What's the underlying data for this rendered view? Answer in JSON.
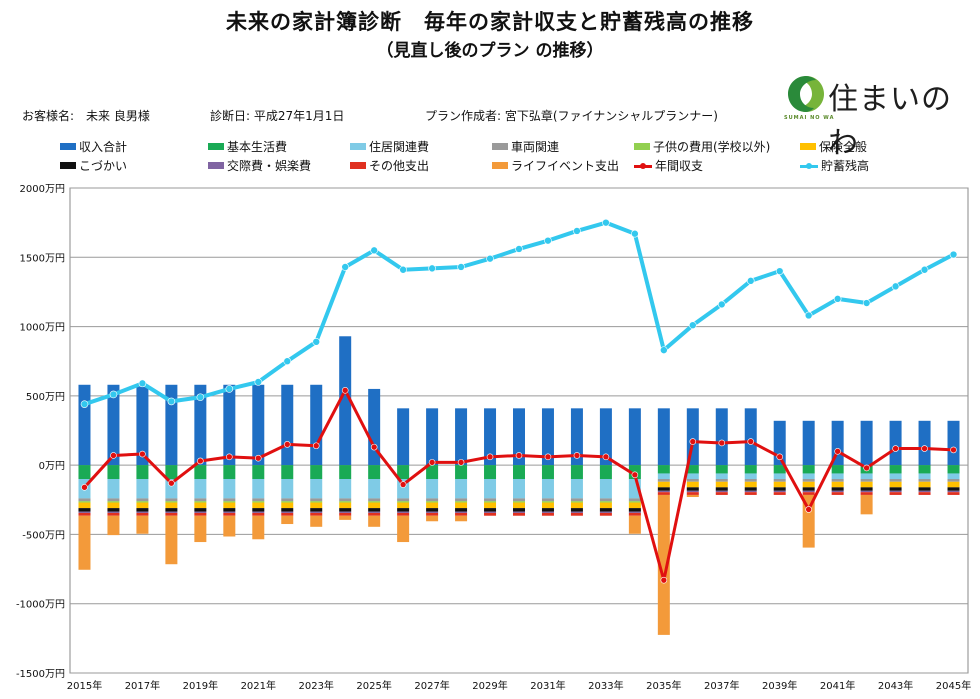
{
  "header": {
    "title": "未来の家計簿診断　毎年の家計収支と貯蓄残高の推移",
    "subtitle": "（見直し後のプラン の推移）"
  },
  "info": {
    "customer": "お客様名:　未来 良男様",
    "diag_date": "診断日: 平成27年1月1日",
    "planner": "プラン作成者: 宮下弘章(ファイナンシャルプランナー)"
  },
  "logo": {
    "text": "住まいのわ",
    "sub": "SUMAI NO WA"
  },
  "chart_data": {
    "type": "bar",
    "ylim": [
      -1500,
      2000
    ],
    "yticks": [
      "2000万円",
      "1500万円",
      "1000万円",
      "500万円",
      "0万円",
      "-500万円",
      "-1000万円",
      "-1500万円"
    ],
    "ytick_values": [
      2000,
      1500,
      1000,
      500,
      0,
      -500,
      -1000,
      -1500
    ],
    "categories": [
      2015,
      2016,
      2017,
      2018,
      2019,
      2020,
      2021,
      2022,
      2023,
      2024,
      2025,
      2026,
      2027,
      2028,
      2029,
      2030,
      2031,
      2032,
      2033,
      2034,
      2035,
      2036,
      2037,
      2038,
      2039,
      2040,
      2041,
      2042,
      2043,
      2044,
      2045
    ],
    "xtick_labels": [
      "2015年",
      "2017年",
      "2019年",
      "2021年",
      "2023年",
      "2025年",
      "2027年",
      "2029年",
      "2031年",
      "2033年",
      "2035年",
      "2037年",
      "2039年",
      "2041年",
      "2043年",
      "2045年"
    ],
    "income": {
      "name": "収入合計",
      "color": "#1f6fc4",
      "values": [
        580,
        580,
        580,
        580,
        580,
        580,
        580,
        580,
        580,
        930,
        550,
        410,
        410,
        410,
        410,
        410,
        410,
        410,
        410,
        410,
        410,
        410,
        410,
        410,
        320,
        320,
        320,
        320,
        320,
        320,
        320
      ]
    },
    "expense_series": [
      {
        "name": "基本生活費",
        "color": "#1aaa55",
        "values": [
          100,
          100,
          100,
          100,
          100,
          100,
          100,
          100,
          100,
          100,
          100,
          100,
          100,
          100,
          100,
          100,
          100,
          100,
          100,
          100,
          60,
          60,
          60,
          60,
          60,
          60,
          60,
          60,
          60,
          60,
          60
        ]
      },
      {
        "name": "住居関連費",
        "color": "#7fcbe6",
        "values": [
          140,
          140,
          140,
          140,
          140,
          140,
          140,
          140,
          140,
          140,
          140,
          140,
          140,
          140,
          140,
          140,
          140,
          140,
          140,
          140,
          40,
          40,
          40,
          40,
          40,
          40,
          40,
          40,
          40,
          40,
          40
        ]
      },
      {
        "name": "車両関連",
        "color": "#9a9a9a",
        "values": [
          20,
          20,
          20,
          20,
          20,
          20,
          20,
          20,
          20,
          20,
          20,
          20,
          20,
          20,
          20,
          20,
          20,
          20,
          20,
          20,
          20,
          20,
          20,
          20,
          20,
          20,
          20,
          20,
          20,
          20,
          20
        ]
      },
      {
        "name": "子供の費用(学校以外)",
        "color": "#92d050",
        "values": [
          10,
          10,
          10,
          10,
          10,
          10,
          10,
          10,
          10,
          10,
          10,
          10,
          10,
          10,
          10,
          10,
          10,
          10,
          10,
          10,
          0,
          0,
          0,
          0,
          0,
          0,
          0,
          0,
          0,
          0,
          0
        ]
      },
      {
        "name": "保険全般",
        "color": "#ffc000",
        "values": [
          40,
          40,
          40,
          40,
          40,
          40,
          40,
          40,
          40,
          40,
          40,
          40,
          40,
          40,
          40,
          40,
          40,
          40,
          40,
          40,
          40,
          40,
          40,
          40,
          40,
          40,
          40,
          40,
          40,
          40,
          40
        ]
      },
      {
        "name": "こづかい",
        "color": "#111111",
        "values": [
          25,
          25,
          25,
          25,
          25,
          25,
          25,
          25,
          25,
          25,
          25,
          25,
          25,
          25,
          25,
          25,
          25,
          25,
          25,
          25,
          25,
          25,
          25,
          25,
          25,
          25,
          25,
          25,
          25,
          25,
          25
        ]
      },
      {
        "name": "交際費・娯楽費",
        "color": "#8064a2",
        "values": [
          10,
          10,
          10,
          10,
          10,
          10,
          10,
          10,
          10,
          10,
          10,
          10,
          10,
          10,
          10,
          10,
          10,
          10,
          10,
          10,
          10,
          10,
          10,
          10,
          10,
          10,
          10,
          10,
          10,
          10,
          10
        ]
      },
      {
        "name": "その他支出",
        "color": "#e03020",
        "values": [
          20,
          20,
          20,
          20,
          20,
          20,
          20,
          20,
          20,
          20,
          20,
          20,
          20,
          20,
          20,
          20,
          20,
          20,
          20,
          20,
          20,
          20,
          20,
          20,
          20,
          20,
          20,
          20,
          20,
          20,
          20
        ]
      },
      {
        "name": "ライフイベント支出",
        "color": "#f39a3a",
        "values": [
          390,
          140,
          130,
          350,
          190,
          150,
          170,
          60,
          80,
          30,
          80,
          190,
          40,
          40,
          0,
          0,
          0,
          0,
          0,
          130,
          1010,
          15,
          0,
          0,
          0,
          380,
          0,
          140,
          0,
          0,
          0
        ]
      }
    ],
    "annual_balance": {
      "name": "年間収支",
      "color": "#e01010",
      "values": [
        -160,
        70,
        80,
        -130,
        30,
        60,
        50,
        150,
        140,
        540,
        130,
        -140,
        20,
        20,
        60,
        70,
        60,
        70,
        60,
        -70,
        -830,
        170,
        160,
        170,
        60,
        -320,
        100,
        -20,
        120,
        120,
        110
      ]
    },
    "savings": {
      "name": "貯蓄残高",
      "color": "#33c8ee",
      "values": [
        440,
        510,
        590,
        460,
        490,
        550,
        600,
        750,
        890,
        1430,
        1550,
        1410,
        1420,
        1430,
        1490,
        1560,
        1620,
        1690,
        1750,
        1670,
        830,
        1010,
        1160,
        1330,
        1400,
        1080,
        1200,
        1170,
        1290,
        1410,
        1520
      ]
    }
  },
  "legend": [
    {
      "label": "収入合計",
      "kind": "bar",
      "color": "#1f6fc4"
    },
    {
      "label": "基本生活費",
      "kind": "bar",
      "color": "#1aaa55"
    },
    {
      "label": "住居関連費",
      "kind": "bar",
      "color": "#7fcbe6"
    },
    {
      "label": "車両関連",
      "kind": "bar",
      "color": "#9a9a9a"
    },
    {
      "label": "子供の費用(学校以外)",
      "kind": "bar",
      "color": "#92d050"
    },
    {
      "label": "保険全般",
      "kind": "bar",
      "color": "#ffc000"
    },
    {
      "label": "こづかい",
      "kind": "bar",
      "color": "#111111"
    },
    {
      "label": "交際費・娯楽費",
      "kind": "bar",
      "color": "#8064a2"
    },
    {
      "label": "その他支出",
      "kind": "bar",
      "color": "#e03020"
    },
    {
      "label": "ライフイベント支出",
      "kind": "bar",
      "color": "#f39a3a"
    },
    {
      "label": "年間収支",
      "kind": "line",
      "color": "#e01010"
    },
    {
      "label": "貯蓄残高",
      "kind": "line",
      "color": "#33c8ee"
    }
  ]
}
